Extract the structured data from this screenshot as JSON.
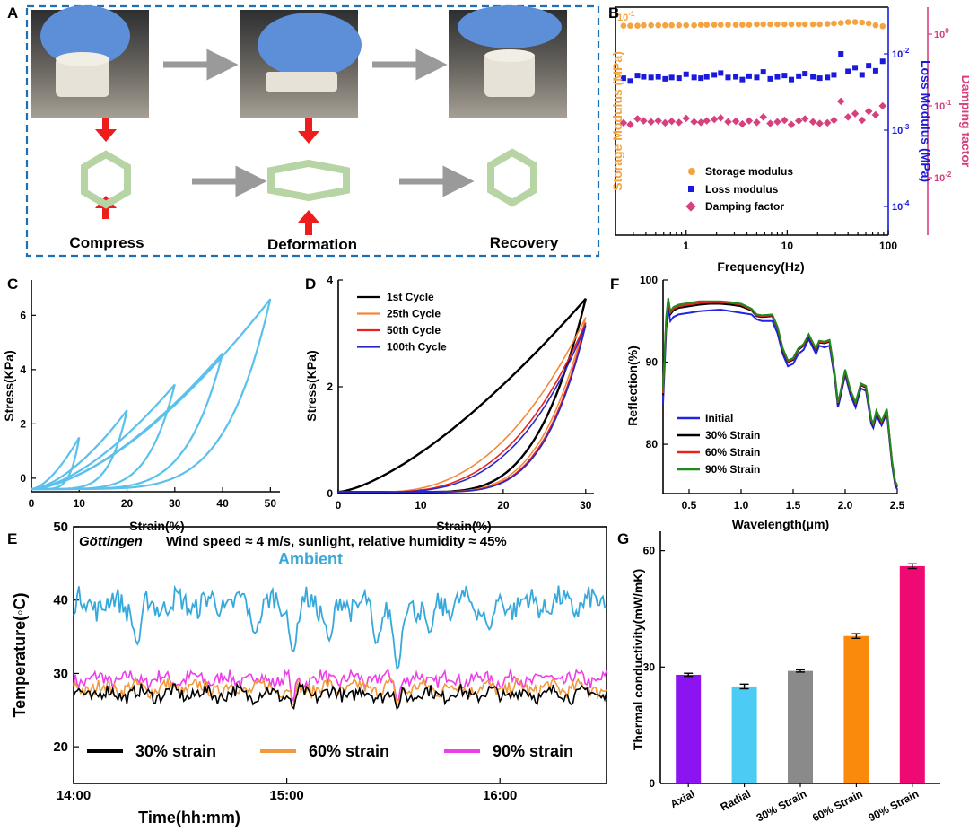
{
  "figure": {
    "panel_labels": [
      "A",
      "B",
      "C",
      "D",
      "E",
      "F",
      "G"
    ]
  },
  "panel_a": {
    "stages": [
      "Compress",
      "Deformation",
      "Recovery"
    ]
  },
  "chart_data": [
    {
      "id": "B",
      "type": "scatter",
      "title": "",
      "xlabel": "Frequency(Hz)",
      "x_scale": "log",
      "xlim": [
        0.2,
        100
      ],
      "x_ticks": [
        "1",
        "10",
        "100"
      ],
      "ylabel_left": "Storage Modulus (MPa)",
      "ylabel_right1": "Loss Modulus (MPa)",
      "ylabel_right2": "Damping factor",
      "y_ticks_left": [
        "10^-1"
      ],
      "y_ticks_right1": [
        "10^-2",
        "10^-3",
        "10^-4"
      ],
      "y_ticks_right2": [
        "10^0",
        "10^-1",
        "10^-2"
      ],
      "colors": {
        "storage": "#f4a340",
        "loss": "#1a1adc",
        "damping": "#d6407e"
      },
      "legend": [
        "Storage modulus",
        "Loss modulus",
        "Damping factor"
      ],
      "legend_position": "bottom-center",
      "series": [
        {
          "name": "Storage modulus",
          "unit": "MPa",
          "x": [
            0.24,
            0.28,
            0.33,
            0.38,
            0.45,
            0.53,
            0.62,
            0.72,
            0.85,
            1.0,
            1.2,
            1.4,
            1.6,
            1.9,
            2.2,
            2.6,
            3.1,
            3.6,
            4.2,
            5.0,
            5.8,
            6.8,
            8.0,
            9.4,
            11,
            13,
            15,
            18,
            21,
            25,
            29,
            34,
            40,
            47,
            55,
            64,
            75,
            88
          ],
          "y": [
            0.08,
            0.08,
            0.08,
            0.081,
            0.081,
            0.081,
            0.081,
            0.081,
            0.081,
            0.081,
            0.081,
            0.082,
            0.082,
            0.082,
            0.082,
            0.082,
            0.082,
            0.082,
            0.082,
            0.083,
            0.083,
            0.083,
            0.083,
            0.083,
            0.083,
            0.083,
            0.083,
            0.083,
            0.083,
            0.084,
            0.085,
            0.086,
            0.088,
            0.088,
            0.087,
            0.085,
            0.081,
            0.079
          ]
        },
        {
          "name": "Loss modulus",
          "unit": "MPa",
          "x": [
            0.24,
            0.28,
            0.33,
            0.38,
            0.45,
            0.53,
            0.62,
            0.72,
            0.85,
            1.0,
            1.2,
            1.4,
            1.6,
            1.9,
            2.2,
            2.6,
            3.1,
            3.6,
            4.2,
            5.0,
            5.8,
            6.8,
            8.0,
            9.4,
            11,
            13,
            15,
            18,
            21,
            25,
            29,
            34,
            40,
            47,
            55,
            64,
            75,
            88
          ],
          "y": [
            0.0048,
            0.0044,
            0.0052,
            0.005,
            0.0049,
            0.005,
            0.0047,
            0.0049,
            0.0048,
            0.0054,
            0.0049,
            0.0048,
            0.005,
            0.0053,
            0.0056,
            0.0049,
            0.005,
            0.0046,
            0.0051,
            0.0049,
            0.0058,
            0.0047,
            0.005,
            0.0052,
            0.0046,
            0.0051,
            0.0055,
            0.005,
            0.0048,
            0.0049,
            0.0053,
            0.01,
            0.0059,
            0.0066,
            0.0053,
            0.007,
            0.006,
            0.008
          ]
        },
        {
          "name": "Damping factor",
          "unit": "",
          "x": [
            0.24,
            0.28,
            0.33,
            0.38,
            0.45,
            0.53,
            0.62,
            0.72,
            0.85,
            1.0,
            1.2,
            1.4,
            1.6,
            1.9,
            2.2,
            2.6,
            3.1,
            3.6,
            4.2,
            5.0,
            5.8,
            6.8,
            8.0,
            9.4,
            11,
            13,
            15,
            18,
            21,
            25,
            29,
            34,
            40,
            47,
            55,
            64,
            75,
            88
          ],
          "y": [
            0.058,
            0.055,
            0.066,
            0.062,
            0.06,
            0.062,
            0.058,
            0.061,
            0.059,
            0.067,
            0.06,
            0.059,
            0.062,
            0.065,
            0.068,
            0.06,
            0.061,
            0.056,
            0.062,
            0.059,
            0.07,
            0.057,
            0.06,
            0.063,
            0.055,
            0.062,
            0.066,
            0.06,
            0.057,
            0.058,
            0.063,
            0.116,
            0.07,
            0.078,
            0.063,
            0.084,
            0.075,
            0.1
          ]
        }
      ]
    },
    {
      "id": "C",
      "type": "line",
      "title": "",
      "xlabel": "Strain(%)",
      "ylabel": "Stress(KPa)",
      "xlim": [
        0,
        52
      ],
      "ylim": [
        -0.5,
        7.3
      ],
      "x_ticks": [
        "0",
        "10",
        "20",
        "30",
        "40",
        "50"
      ],
      "y_ticks": [
        "0",
        "2",
        "4",
        "6"
      ],
      "color": "#5bc0ec",
      "cycles": [
        {
          "max_strain": 10,
          "peak_stress": 1.5
        },
        {
          "max_strain": 20,
          "peak_stress": 2.5
        },
        {
          "max_strain": 30,
          "peak_stress": 3.45
        },
        {
          "max_strain": 40,
          "peak_stress": 4.6
        },
        {
          "max_strain": 50,
          "peak_stress": 6.6
        }
      ]
    },
    {
      "id": "D",
      "type": "line",
      "title": "",
      "xlabel": "Strain(%)",
      "ylabel": "Stress(KPa)",
      "xlim": [
        0,
        31
      ],
      "ylim": [
        0,
        4
      ],
      "x_ticks": [
        "0",
        "10",
        "20",
        "30"
      ],
      "y_ticks": [
        "0",
        "2",
        "4"
      ],
      "legend_position": "top-left",
      "series": [
        {
          "name": "1st Cycle",
          "color": "#000000",
          "max_strain": 30,
          "peak_stress": 3.65
        },
        {
          "name": "25th Cycle",
          "color": "#f28a3a",
          "max_strain": 30,
          "peak_stress": 3.3
        },
        {
          "name": "50th Cycle",
          "color": "#e8221c",
          "max_strain": 30,
          "peak_stress": 3.2
        },
        {
          "name": "100th Cycle",
          "color": "#2a28c8",
          "max_strain": 30,
          "peak_stress": 3.15
        }
      ]
    },
    {
      "id": "F",
      "type": "line",
      "title": "",
      "xlabel": "Wavelength(μm)",
      "ylabel": "Reflection(%)",
      "xlim": [
        0.25,
        2.5
      ],
      "ylim": [
        74,
        100
      ],
      "x_ticks": [
        "0.5",
        "1.0",
        "1.5",
        "2.0",
        "2.5"
      ],
      "y_ticks": [
        "80",
        "90",
        "100"
      ],
      "legend_position": "bottom-left",
      "x": [
        0.25,
        0.28,
        0.3,
        0.32,
        0.35,
        0.4,
        0.5,
        0.6,
        0.7,
        0.8,
        0.9,
        1.0,
        1.1,
        1.15,
        1.2,
        1.3,
        1.35,
        1.4,
        1.45,
        1.5,
        1.55,
        1.6,
        1.65,
        1.7,
        1.72,
        1.75,
        1.8,
        1.85,
        1.9,
        1.93,
        1.95,
        2.0,
        2.05,
        2.1,
        2.15,
        2.2,
        2.25,
        2.27,
        2.3,
        2.35,
        2.4,
        2.43,
        2.45,
        2.48,
        2.5
      ],
      "series": [
        {
          "name": "Initial",
          "color": "#2323e8",
          "y": [
            85.0,
            94.0,
            96.5,
            95.0,
            95.5,
            95.8,
            96.0,
            96.2,
            96.3,
            96.4,
            96.2,
            96.0,
            95.8,
            95.2,
            95.0,
            95.0,
            93.5,
            91.0,
            89.5,
            89.8,
            91.0,
            91.5,
            92.8,
            91.5,
            91.0,
            92.0,
            91.8,
            92.0,
            88.0,
            84.5,
            85.5,
            88.5,
            86.0,
            84.5,
            86.8,
            86.5,
            82.5,
            82.0,
            83.5,
            82.3,
            83.8,
            80.0,
            77.5,
            75.0,
            74.5
          ]
        },
        {
          "name": "30% Strain",
          "color": "#000000",
          "y": [
            86.0,
            95.0,
            97.3,
            95.8,
            96.3,
            96.6,
            96.8,
            97.0,
            97.1,
            97.1,
            97.0,
            96.8,
            96.3,
            95.6,
            95.5,
            95.6,
            94.1,
            91.5,
            90.0,
            90.3,
            91.5,
            92.0,
            93.2,
            91.9,
            91.5,
            92.4,
            92.3,
            92.5,
            88.4,
            84.9,
            85.9,
            88.9,
            86.4,
            84.9,
            87.2,
            86.9,
            82.9,
            82.3,
            83.9,
            82.6,
            84.1,
            80.3,
            77.8,
            75.3,
            74.8
          ]
        },
        {
          "name": "60% Strain",
          "color": "#e8221c",
          "y": [
            86.2,
            95.2,
            97.5,
            96.0,
            96.5,
            96.8,
            97.0,
            97.2,
            97.3,
            97.3,
            97.2,
            97.0,
            96.4,
            95.7,
            95.6,
            95.7,
            94.2,
            91.6,
            90.1,
            90.4,
            91.6,
            92.1,
            93.3,
            92.0,
            91.6,
            92.5,
            92.4,
            92.6,
            88.5,
            85.0,
            86.0,
            89.0,
            86.5,
            85.0,
            87.3,
            87.0,
            83.0,
            82.4,
            84.0,
            82.7,
            84.2,
            80.4,
            77.9,
            75.4,
            74.9
          ]
        },
        {
          "name": "90% Strain",
          "color": "#1f8a1f",
          "y": [
            86.5,
            95.5,
            97.8,
            96.2,
            96.7,
            97.0,
            97.2,
            97.4,
            97.4,
            97.4,
            97.3,
            97.1,
            96.5,
            95.8,
            95.7,
            95.8,
            94.3,
            91.7,
            90.2,
            90.5,
            91.7,
            92.2,
            93.4,
            92.1,
            91.7,
            92.6,
            92.5,
            92.7,
            88.6,
            85.1,
            86.1,
            89.1,
            86.6,
            85.1,
            87.4,
            87.1,
            83.1,
            82.5,
            84.1,
            82.8,
            84.3,
            80.5,
            78.0,
            75.5,
            75.0
          ]
        }
      ]
    },
    {
      "id": "E",
      "type": "line",
      "title": "",
      "location": "Göttingen",
      "conditions": "Wind speed ≈ 4 m/s, sunlight, relative humidity ≈ 45%",
      "xlabel": "Time(hh:mm)",
      "ylabel": "Temperature(◦C)",
      "xlim": [
        "14:00",
        "16:30"
      ],
      "ylim": [
        15,
        50
      ],
      "x_ticks": [
        "14:00",
        "15:00",
        "16:00"
      ],
      "y_ticks": [
        "20",
        "30",
        "40",
        "50"
      ],
      "legend_position": "bottom",
      "series": [
        {
          "name": "Ambient",
          "color": "#36a9dc",
          "mean": 39.5,
          "dips": [
            [
              14.3,
              34.0
            ],
            [
              14.85,
              35.5
            ],
            [
              15.03,
              33.0
            ],
            [
              15.2,
              34.5
            ],
            [
              15.42,
              34.0
            ],
            [
              15.52,
              30.5
            ],
            [
              15.67,
              35.5
            ],
            [
              15.95,
              36.0
            ]
          ]
        },
        {
          "name": "30% strain",
          "color": "#000000",
          "mean": 27.2,
          "dips": [
            [
              15.03,
              25.0
            ],
            [
              15.52,
              25.0
            ]
          ]
        },
        {
          "name": "60% strain",
          "color": "#f09a3e",
          "mean": 28.0,
          "dips": [
            [
              15.03,
              25.5
            ],
            [
              15.52,
              25.5
            ]
          ]
        },
        {
          "name": "90% strain",
          "color": "#ee3ee8",
          "mean": 29.2,
          "dips": [
            [
              15.03,
              26.0
            ],
            [
              15.52,
              26.0
            ]
          ]
        }
      ]
    },
    {
      "id": "G",
      "type": "bar",
      "title": "",
      "xlabel": "",
      "ylabel": "Thermal conductivity(mW/mK)",
      "ylim": [
        0,
        65
      ],
      "y_ticks": [
        "0",
        "30",
        "60"
      ],
      "categories": [
        "Axial",
        "Radial",
        "30% Strain",
        "60% Strain",
        "90% Strain"
      ],
      "values": [
        28.0,
        25.0,
        29.0,
        38.0,
        56.0
      ],
      "errors": [
        0.4,
        0.6,
        0.3,
        0.6,
        0.6
      ],
      "colors": [
        "#8b14f0",
        "#4ccbf5",
        "#8a8a8a",
        "#fa8a0c",
        "#ee0a72"
      ]
    }
  ]
}
